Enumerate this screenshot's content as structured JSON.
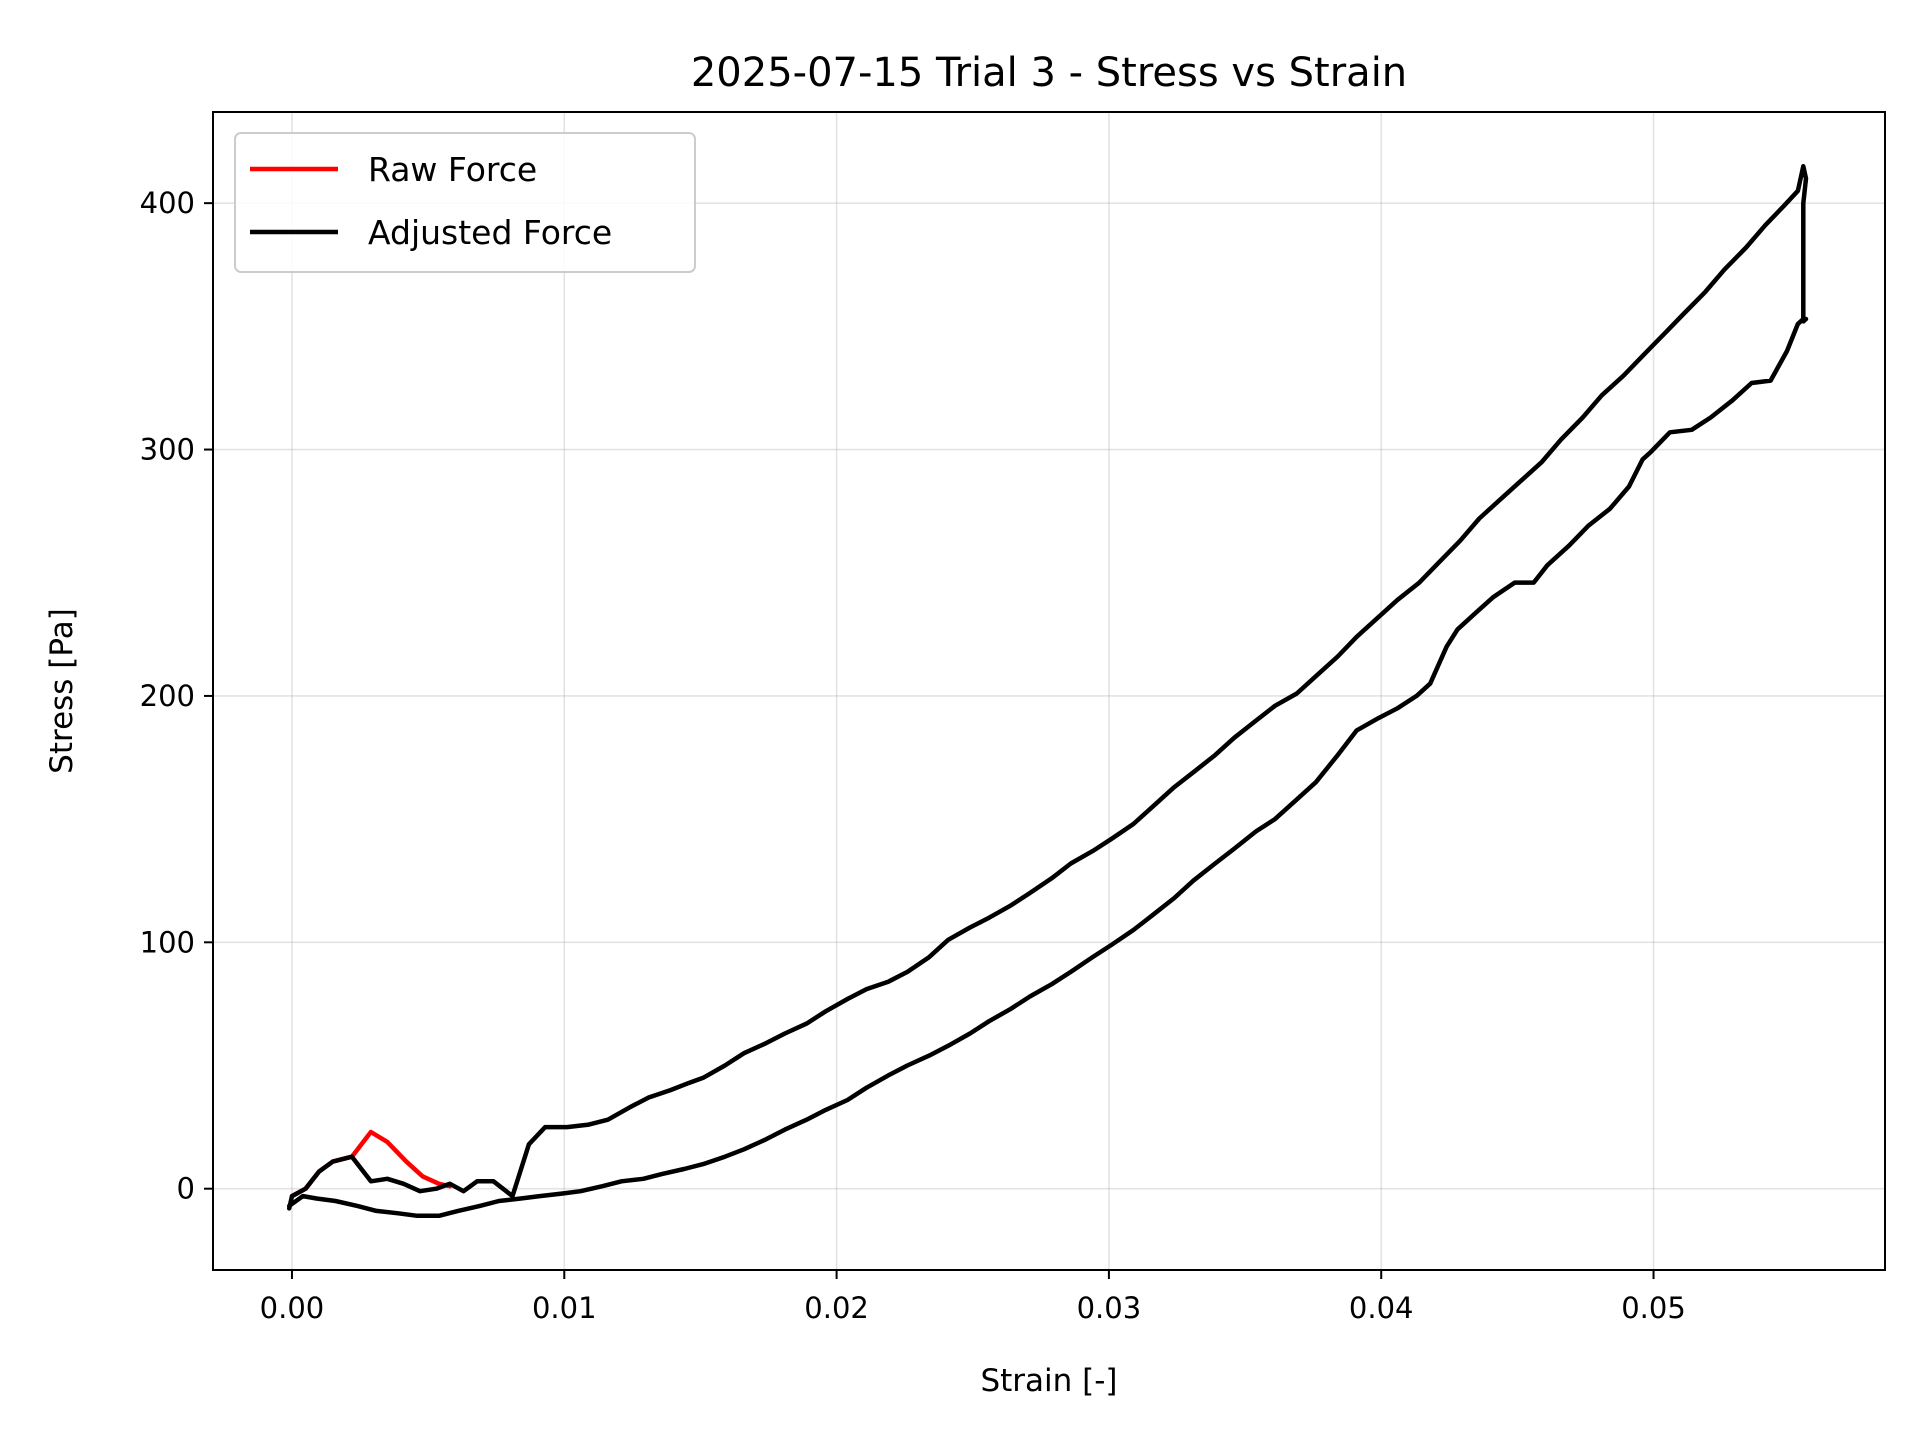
{
  "chart_data": {
    "type": "line",
    "title": "2025-07-15 Trial 3 - Stress vs Strain",
    "xlabel": "Strain [-]",
    "ylabel": "Stress [Pa]",
    "xlim": [
      -0.0029,
      0.0585
    ],
    "ylim": [
      -33,
      437
    ],
    "xticks": [
      0.0,
      0.01,
      0.02,
      0.03,
      0.04,
      0.05
    ],
    "xtick_labels": [
      "0.00",
      "0.01",
      "0.02",
      "0.03",
      "0.04",
      "0.05"
    ],
    "yticks": [
      0,
      100,
      200,
      300,
      400
    ],
    "ytick_labels": [
      "0",
      "100",
      "200",
      "300",
      "400"
    ],
    "grid": true,
    "legend": "top-left",
    "series": [
      {
        "name": "Raw Force",
        "color": "#ff0000",
        "x": [
          0.0,
          0.0005,
          0.001,
          0.0015,
          0.0022,
          0.0029,
          0.0035,
          0.0042,
          0.0048,
          0.0054,
          0.0058
        ],
        "y": [
          -3,
          0,
          7,
          11,
          13,
          23,
          19,
          11,
          5,
          2,
          1
        ]
      },
      {
        "name": "Adjusted Force",
        "color": "#000000",
        "x": [
          -0.0001,
          0.0,
          0.0005,
          0.001,
          0.0015,
          0.0022,
          0.0029,
          0.0035,
          0.0041,
          0.0047,
          0.0053,
          0.0058,
          0.0063,
          0.0068,
          0.0074,
          0.0081,
          0.0087,
          0.0093,
          0.0101,
          0.0109,
          0.0116,
          0.0124,
          0.0131,
          0.0139,
          0.0146,
          0.0151,
          0.0159,
          0.0166,
          0.0174,
          0.0181,
          0.0189,
          0.0196,
          0.0204,
          0.0211,
          0.0219,
          0.0226,
          0.0234,
          0.0241,
          0.0249,
          0.0256,
          0.0264,
          0.0271,
          0.0279,
          0.0286,
          0.0294,
          0.0301,
          0.0309,
          0.0316,
          0.0324,
          0.0331,
          0.0339,
          0.0346,
          0.0354,
          0.0361,
          0.0369,
          0.0376,
          0.0384,
          0.0391,
          0.0399,
          0.0406,
          0.0414,
          0.0421,
          0.0429,
          0.0436,
          0.0444,
          0.0451,
          0.0459,
          0.0466,
          0.0474,
          0.0481,
          0.0489,
          0.0496,
          0.0504,
          0.0511,
          0.0519,
          0.0526,
          0.0534,
          0.0541,
          0.0548,
          0.0553,
          0.0555,
          0.0556,
          0.0555,
          0.0555,
          0.0556,
          0.0555,
          0.0553,
          0.0549,
          0.0543,
          0.0536,
          0.0529,
          0.0521,
          0.0514,
          0.0506,
          0.0499,
          0.0496,
          0.0491,
          0.0484,
          0.0476,
          0.0469,
          0.0461,
          0.0456,
          0.0449,
          0.0441,
          0.0434,
          0.0428,
          0.0424,
          0.0418,
          0.0413,
          0.0406,
          0.0399,
          0.0391,
          0.0384,
          0.0376,
          0.0369,
          0.0361,
          0.0354,
          0.0346,
          0.0339,
          0.0331,
          0.0324,
          0.0316,
          0.0309,
          0.0301,
          0.0294,
          0.0286,
          0.0279,
          0.0271,
          0.0264,
          0.0256,
          0.0249,
          0.0241,
          0.0234,
          0.0226,
          0.0219,
          0.0211,
          0.0204,
          0.0196,
          0.0189,
          0.0181,
          0.0174,
          0.0166,
          0.0159,
          0.0151,
          0.0144,
          0.0136,
          0.0129,
          0.0121,
          0.0114,
          0.0106,
          0.0099,
          0.0091,
          0.0084,
          0.0076,
          0.0069,
          0.0061,
          0.0054,
          0.0046,
          0.0039,
          0.0031,
          0.0024,
          0.0016,
          0.0009,
          0.0004,
          -0.0001
        ],
        "y": [
          -8,
          -3,
          0,
          7,
          11,
          13,
          3,
          4,
          2,
          -1,
          0,
          2,
          -1,
          3,
          3,
          -3,
          18,
          25,
          25,
          26,
          28,
          33,
          37,
          40,
          43,
          45,
          50,
          55,
          59,
          63,
          67,
          72,
          77,
          81,
          84,
          88,
          94,
          101,
          106,
          110,
          115,
          120,
          126,
          132,
          137,
          142,
          148,
          155,
          163,
          169,
          176,
          183,
          190,
          196,
          201,
          208,
          216,
          224,
          232,
          239,
          246,
          254,
          263,
          272,
          280,
          287,
          295,
          304,
          313,
          322,
          330,
          338,
          347,
          355,
          364,
          373,
          382,
          391,
          399,
          405,
          415,
          410,
          400,
          352,
          353,
          353,
          351,
          340,
          328,
          327,
          320,
          313,
          308,
          307,
          299,
          296,
          285,
          276,
          269,
          261,
          253,
          246,
          246,
          240,
          233,
          227,
          220,
          205,
          200,
          195,
          191,
          186,
          176,
          165,
          158,
          150,
          145,
          138,
          132,
          125,
          118,
          111,
          105,
          99,
          94,
          88,
          83,
          78,
          73,
          68,
          63,
          58,
          54,
          50,
          46,
          41,
          36,
          32,
          28,
          24,
          20,
          16,
          13,
          10,
          8,
          6,
          4,
          3,
          1,
          -1,
          -2,
          -3,
          -4,
          -5,
          -7,
          -9,
          -11,
          -11,
          -10,
          -9,
          -7,
          -5,
          -4,
          -3,
          -7
        ]
      }
    ]
  }
}
